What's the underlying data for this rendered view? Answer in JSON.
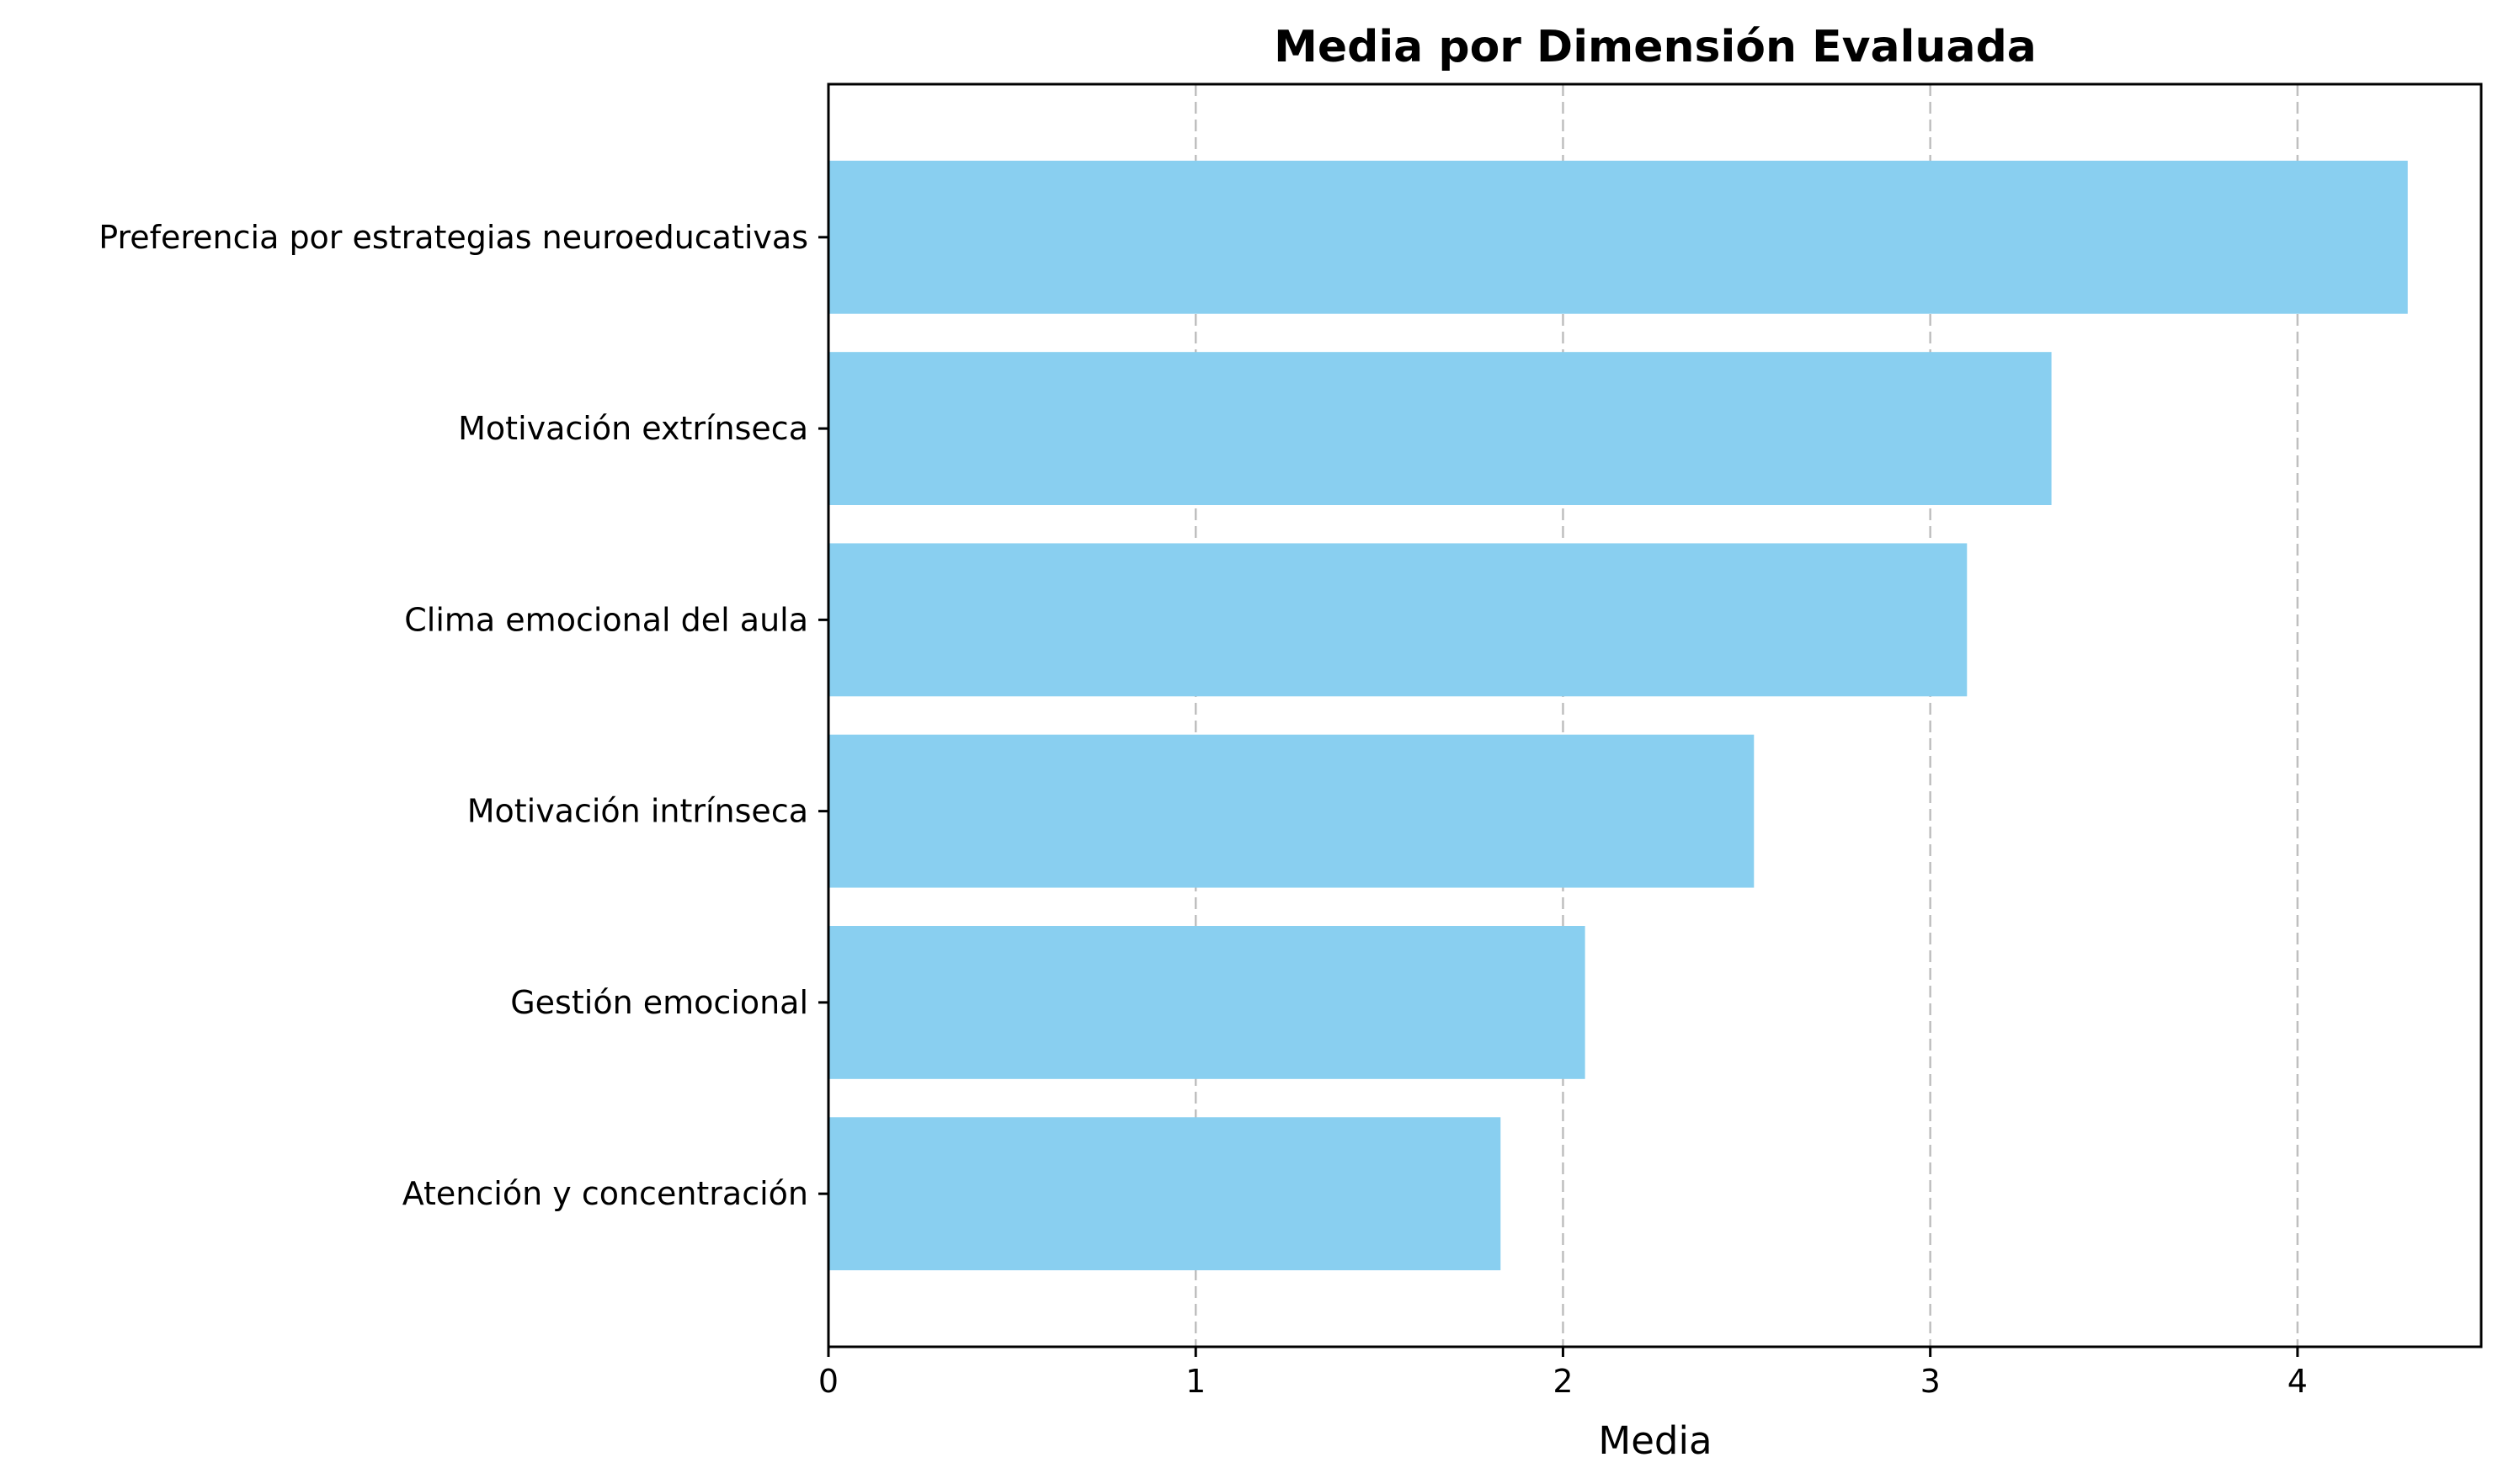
{
  "chart_data": {
    "type": "bar",
    "orientation": "horizontal",
    "title": "Media por Dimensión Evaluada",
    "xlabel": "Media",
    "ylabel": "",
    "xlim": [
      0,
      4.5
    ],
    "xticks": [
      0,
      1,
      2,
      3,
      4
    ],
    "categories": [
      "Preferencia por estrategias neuroeducativas",
      "Motivación extrínseca",
      "Clima emocional del aula",
      "Motivación intrínseca",
      "Gestión emocional",
      "Atención y concentración"
    ],
    "values": [
      4.3,
      3.33,
      3.1,
      2.52,
      2.06,
      1.83
    ],
    "bar_color": "#89CFF0",
    "grid": {
      "x": true,
      "y": false,
      "style": "dashed"
    },
    "legend": "none"
  }
}
